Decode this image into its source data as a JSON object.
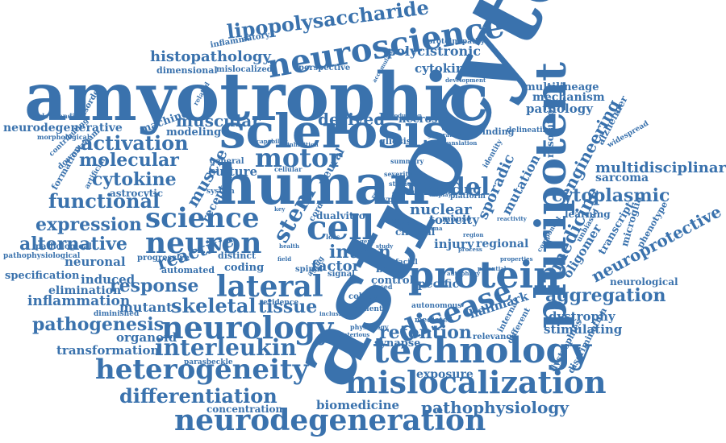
{
  "color": "#3a72ad",
  "words": [
    "astrocyte",
    "amyotrophic",
    "human",
    "sclerosis",
    "pluripotent",
    "neuroscience",
    "protein",
    "disease",
    "technology",
    "neurology",
    "neuron",
    "science",
    "cell",
    "mislocalization",
    "neurodegeneration",
    "heterogeneity",
    "lateral",
    "model",
    "motor",
    "stem",
    "interleukin",
    "differentiation",
    "lipopolysaccharide",
    "skeletal",
    "tissue",
    "response",
    "activation",
    "functional",
    "expression",
    "alternative",
    "reactive",
    "molecular",
    "cytokine",
    "muscle",
    "muscular",
    "derived",
    "engineering",
    "medicine",
    "aggregation",
    "cytoplasmic",
    "multidisciplinary",
    "retention",
    "pathogenesis",
    "pathophysiology",
    "neuroprotective",
    "histopathology",
    "polycistronic",
    "cytokines",
    "neurodegenerative",
    "inflammation",
    "transformation",
    "organoid",
    "mutant",
    "induced",
    "elimination",
    "specification",
    "neuronal",
    "culture",
    "receptor",
    "intron",
    "factor",
    "nuclear",
    "sporadic",
    "mutation",
    "splicing",
    "toxicity",
    "injury",
    "regional",
    "specific",
    "hallmark",
    "synapse",
    "exposure",
    "biomedicine",
    "concentration",
    "dystrophy",
    "stimulating",
    "sarcoma",
    "resolution",
    "pathology",
    "mechanism",
    "multilineage",
    "learning",
    "oligomer",
    "transcript",
    "microglia",
    "phenotype",
    "neurological",
    "inflammatory",
    "proteinopathy",
    "perspective",
    "dimensional",
    "mislocalized",
    "machine",
    "modeling",
    "necrosis",
    "binding",
    "delineating",
    "alzheimer",
    "widespread",
    "identity",
    "gliosis",
    "clinical",
    "platform",
    "mouse",
    "brain",
    "control",
    "coding",
    "astrocytic",
    "dualvitro",
    "progressive",
    "pathological",
    "pathophysiological",
    "automated",
    "distinct",
    "spinal",
    "signal",
    "aging",
    "neural",
    "cord",
    "type",
    "sfpq",
    "facial",
    "colony",
    "patient",
    "relevance",
    "autonomous",
    "mediated",
    "internal",
    "different",
    "dystrophies",
    "discrimination",
    "diminished",
    "parasbeckle",
    "evidence",
    "understanding",
    "morphological",
    "disorder",
    "contributing",
    "downstream",
    "formation",
    "artificial",
    "production",
    "accumulation",
    "development",
    "general",
    "system",
    "related",
    "health",
    "summary",
    "severity",
    "translation",
    "generation",
    "inhibition",
    "capability",
    "deleterious",
    "physiology",
    "component",
    "unbiased",
    "properties",
    "region",
    "gene",
    "study",
    "reactivity",
    "trauma",
    "key",
    "field",
    "loss",
    "role",
    "fused",
    "cellular",
    "inclusion",
    "process",
    "autophagy",
    "potential",
    "studies",
    "critical",
    "display"
  ]
}
